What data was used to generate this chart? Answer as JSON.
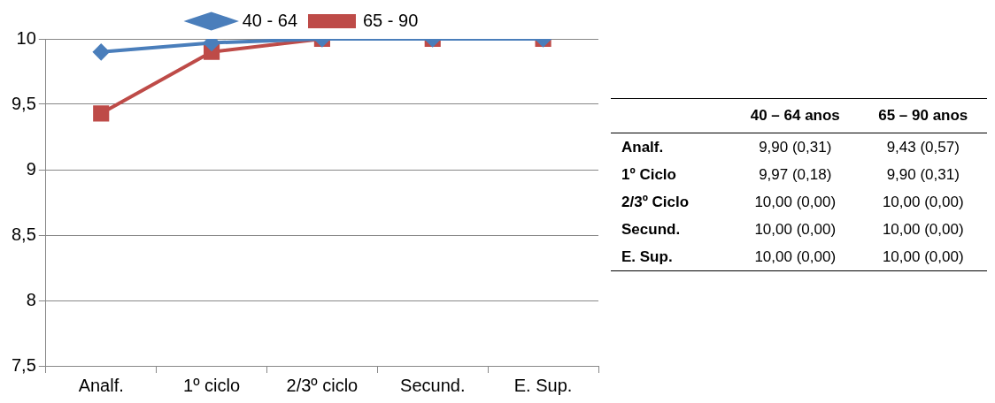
{
  "chart_data": [
    {
      "type": "line",
      "categories": [
        "Analf.",
        "1º ciclo",
        "2/3º ciclo",
        "Secund.",
        "E. Sup."
      ],
      "series": [
        {
          "name": "40 - 64",
          "color": "#4a7ebb",
          "marker": "diamond",
          "values": [
            9.9,
            9.97,
            10,
            10,
            10
          ]
        },
        {
          "name": "65 - 90",
          "color": "#be4b48",
          "marker": "square",
          "values": [
            9.43,
            9.9,
            10,
            10,
            10
          ]
        }
      ],
      "ylim": [
        7.5,
        10
      ],
      "yticks": [
        {
          "value": 7.5,
          "label": "7,5"
        },
        {
          "value": 8,
          "label": "8"
        },
        {
          "value": 8.5,
          "label": "8,5"
        },
        {
          "value": 9,
          "label": "9"
        },
        {
          "value": 9.5,
          "label": "9,5"
        },
        {
          "value": 10,
          "label": "10"
        }
      ],
      "grid": "y",
      "legend": "top",
      "line_style": "solid"
    },
    {
      "type": "other",
      "categories": [
        "40 – 64 anos",
        "65 – 90 anos"
      ],
      "y_categories": [
        "Analf.",
        "1º Ciclo",
        "2/3º Ciclo",
        "Secund.",
        "E. Sup."
      ],
      "cell_labels": [
        [
          "9,90 (0,31)",
          "9,43 (0,57)"
        ],
        [
          "9,97 (0,18)",
          "9,90 (0,31)"
        ],
        [
          "10,00 (0,00)",
          "10,00 (0,00)"
        ],
        [
          "10,00 (0,00)",
          "10,00 (0,00)"
        ],
        [
          "10,00 (0,00)",
          "10,00 (0,00)"
        ]
      ]
    }
  ]
}
